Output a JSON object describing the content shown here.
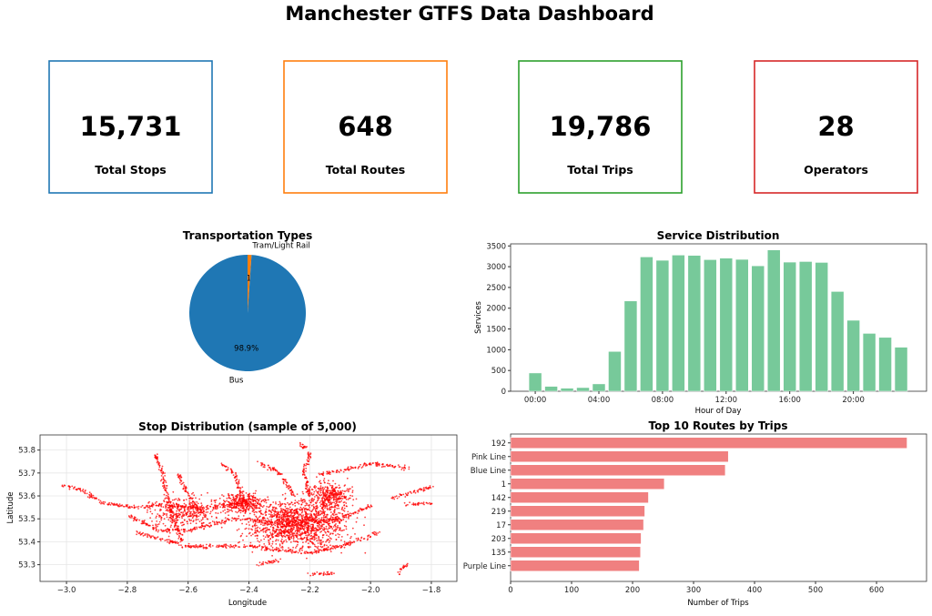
{
  "title": "Manchester GTFS Data Dashboard",
  "kpis": [
    {
      "value": "15,731",
      "label": "Total Stops",
      "color": "#1f77b4"
    },
    {
      "value": "648",
      "label": "Total Routes",
      "color": "#ff7f0e"
    },
    {
      "value": "19,786",
      "label": "Total Trips",
      "color": "#2ca02c"
    },
    {
      "value": "28",
      "label": "Operators",
      "color": "#d62728"
    }
  ],
  "chart_data": [
    {
      "type": "pie",
      "title": "Transportation Types",
      "slices": [
        {
          "label": "Tram/Light Rail",
          "pct": 1.1,
          "pct_label": "1.1%",
          "color": "#ff7f0e"
        },
        {
          "label": "Bus",
          "pct": 98.9,
          "pct_label": "98.9%",
          "color": "#1f77b4"
        }
      ]
    },
    {
      "type": "bar",
      "title": "Service Distribution",
      "xlabel": "Hour of Day",
      "ylabel": "Services",
      "color": "#77c99a",
      "categories": [
        "00:00",
        "01:00",
        "02:00",
        "03:00",
        "04:00",
        "05:00",
        "06:00",
        "07:00",
        "08:00",
        "09:00",
        "10:00",
        "11:00",
        "12:00",
        "13:00",
        "14:00",
        "15:00",
        "16:00",
        "17:00",
        "18:00",
        "19:00",
        "20:00",
        "21:00",
        "22:00",
        "23:00"
      ],
      "values": [
        440,
        118,
        74,
        88,
        177,
        958,
        2174,
        3235,
        3154,
        3279,
        3272,
        3169,
        3206,
        3176,
        3021,
        3404,
        3110,
        3124,
        3102,
        2402,
        1709,
        1393,
        1297,
        1061
      ],
      "xticks": [
        "00:00",
        "04:00",
        "08:00",
        "12:00",
        "16:00",
        "20:00"
      ],
      "yticks": [
        0,
        500,
        1000,
        1500,
        2000,
        2500,
        3000,
        3500
      ],
      "ylim": [
        0,
        3550
      ]
    },
    {
      "type": "scatter",
      "title": "Stop Distribution (sample of 5,000)",
      "xlabel": "Longitude",
      "ylabel": "Latitude",
      "color": "#ff0000",
      "grid": true,
      "xlim": [
        -3.087,
        -1.716
      ],
      "ylim": [
        53.227,
        53.866
      ],
      "xticks": [
        -3.0,
        -2.8,
        -2.6,
        -2.4,
        -2.2,
        -2.0,
        -1.8
      ],
      "yticks": [
        53.3,
        53.4,
        53.5,
        53.6,
        53.7,
        53.8
      ],
      "route_lines": [
        [
          [
            -3.01,
            53.645
          ],
          [
            -2.95,
            53.625
          ],
          [
            -2.88,
            53.57
          ],
          [
            -2.78,
            53.55
          ],
          [
            -2.7,
            53.56
          ],
          [
            -2.55,
            53.55
          ],
          [
            -2.4,
            53.57
          ]
        ],
        [
          [
            -2.71,
            53.79
          ],
          [
            -2.69,
            53.72
          ],
          [
            -2.67,
            53.6
          ],
          [
            -2.65,
            53.5
          ],
          [
            -2.62,
            53.4
          ]
        ],
        [
          [
            -2.63,
            53.7
          ],
          [
            -2.6,
            53.6
          ],
          [
            -2.55,
            53.52
          ]
        ],
        [
          [
            -2.49,
            53.74
          ],
          [
            -2.45,
            53.7
          ],
          [
            -2.42,
            53.6
          ]
        ],
        [
          [
            -2.37,
            53.75
          ],
          [
            -2.3,
            53.7
          ],
          [
            -2.25,
            53.6
          ]
        ],
        [
          [
            -2.23,
            53.83
          ],
          [
            -2.2,
            53.78
          ],
          [
            -2.22,
            53.7
          ],
          [
            -2.2,
            53.6
          ]
        ],
        [
          [
            -2.18,
            53.69
          ],
          [
            -2.1,
            53.71
          ],
          [
            -2.0,
            53.74
          ],
          [
            -1.87,
            53.72
          ]
        ],
        [
          [
            -1.93,
            53.59
          ],
          [
            -1.8,
            53.64
          ]
        ],
        [
          [
            -1.88,
            53.56
          ],
          [
            -1.8,
            53.57
          ]
        ],
        [
          [
            -1.91,
            53.26
          ],
          [
            -1.88,
            53.3
          ]
        ],
        [
          [
            -2.37,
            53.3
          ],
          [
            -2.3,
            53.32
          ]
        ],
        [
          [
            -2.2,
            53.26
          ],
          [
            -2.12,
            53.26
          ]
        ],
        [
          [
            -2.77,
            53.44
          ],
          [
            -2.6,
            53.38
          ],
          [
            -2.4,
            53.38
          ],
          [
            -2.2,
            53.35
          ],
          [
            -2.1,
            53.38
          ],
          [
            -1.97,
            53.44
          ]
        ],
        [
          [
            -2.8,
            53.52
          ],
          [
            -2.7,
            53.45
          ],
          [
            -2.6,
            53.45
          ],
          [
            -2.45,
            53.5
          ],
          [
            -2.3,
            53.48
          ],
          [
            -2.1,
            53.5
          ],
          [
            -1.99,
            53.56
          ]
        ]
      ],
      "clusters": [
        {
          "lon": -2.24,
          "lat": 53.48,
          "sd_lon": 0.11,
          "sd_lat": 0.07
        },
        {
          "lon": -2.42,
          "lat": 53.57,
          "sd_lon": 0.05,
          "sd_lat": 0.03
        },
        {
          "lon": -2.62,
          "lat": 53.53,
          "sd_lon": 0.08,
          "sd_lat": 0.05
        },
        {
          "lon": -2.13,
          "lat": 53.6,
          "sd_lon": 0.05,
          "sd_lat": 0.04
        }
      ]
    },
    {
      "type": "bar",
      "orientation": "horizontal",
      "title": "Top 10 Routes by Trips",
      "xlabel": "Number of Trips",
      "color": "#f08080",
      "categories": [
        "192",
        "Pink Line",
        "Blue Line",
        "1",
        "142",
        "219",
        "17",
        "203",
        "135",
        "Purple Line"
      ],
      "values": [
        650,
        357,
        352,
        252,
        226,
        220,
        218,
        214,
        213,
        211
      ],
      "xticks": [
        0,
        100,
        200,
        300,
        400,
        500,
        600
      ],
      "xlim": [
        0,
        682
      ]
    }
  ]
}
